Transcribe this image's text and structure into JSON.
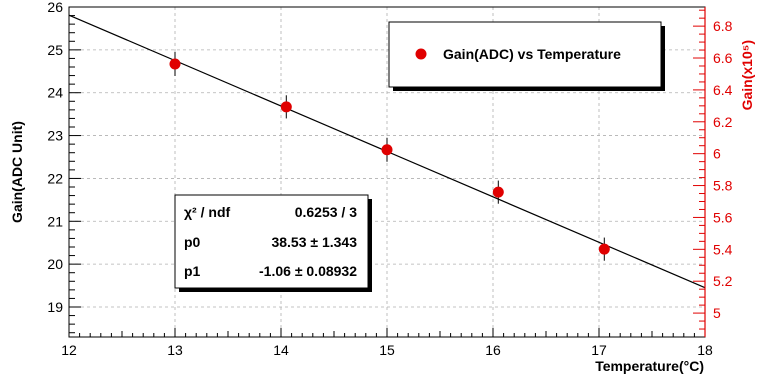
{
  "chart_data": {
    "type": "scatter",
    "xlabel": "Temperature(°C)",
    "ylabel": "Gain(ADC Unit)",
    "y2label": "Gain(x10⁵)",
    "xlim": [
      12,
      18
    ],
    "ylim": [
      18.3,
      26
    ],
    "y2lim": [
      4.85,
      6.92
    ],
    "x_ticks": [
      "12",
      "13",
      "14",
      "15",
      "16",
      "17",
      "18"
    ],
    "y_ticks": [
      "19",
      "20",
      "21",
      "22",
      "23",
      "24",
      "25",
      "26"
    ],
    "y2_ticks": [
      "5",
      "5.2",
      "5.4",
      "5.6",
      "5.8",
      "6",
      "6.2",
      "6.4",
      "6.6",
      "6.8"
    ],
    "grid": true,
    "legend_position": "top-right",
    "series": [
      {
        "name": "Gain(ADC) vs Temperature",
        "color": "#e00000",
        "points": [
          {
            "x": 13.0,
            "y": 24.67,
            "err": 0.28
          },
          {
            "x": 14.05,
            "y": 23.67,
            "err": 0.27
          },
          {
            "x": 15.0,
            "y": 22.67,
            "err": 0.28
          },
          {
            "x": 16.05,
            "y": 21.68,
            "err": 0.27
          },
          {
            "x": 17.05,
            "y": 20.35,
            "err": 0.27
          }
        ]
      }
    ],
    "fit": {
      "color": "#000000",
      "p0": 38.53,
      "p1": -1.06
    },
    "stats_box": {
      "rows": [
        {
          "label": "χ² / ndf",
          "value": "0.6253 / 3"
        },
        {
          "label": "p0",
          "value": "38.53 ± 1.343"
        },
        {
          "label": "p1",
          "value": "-1.06 ± 0.08932"
        }
      ]
    }
  }
}
